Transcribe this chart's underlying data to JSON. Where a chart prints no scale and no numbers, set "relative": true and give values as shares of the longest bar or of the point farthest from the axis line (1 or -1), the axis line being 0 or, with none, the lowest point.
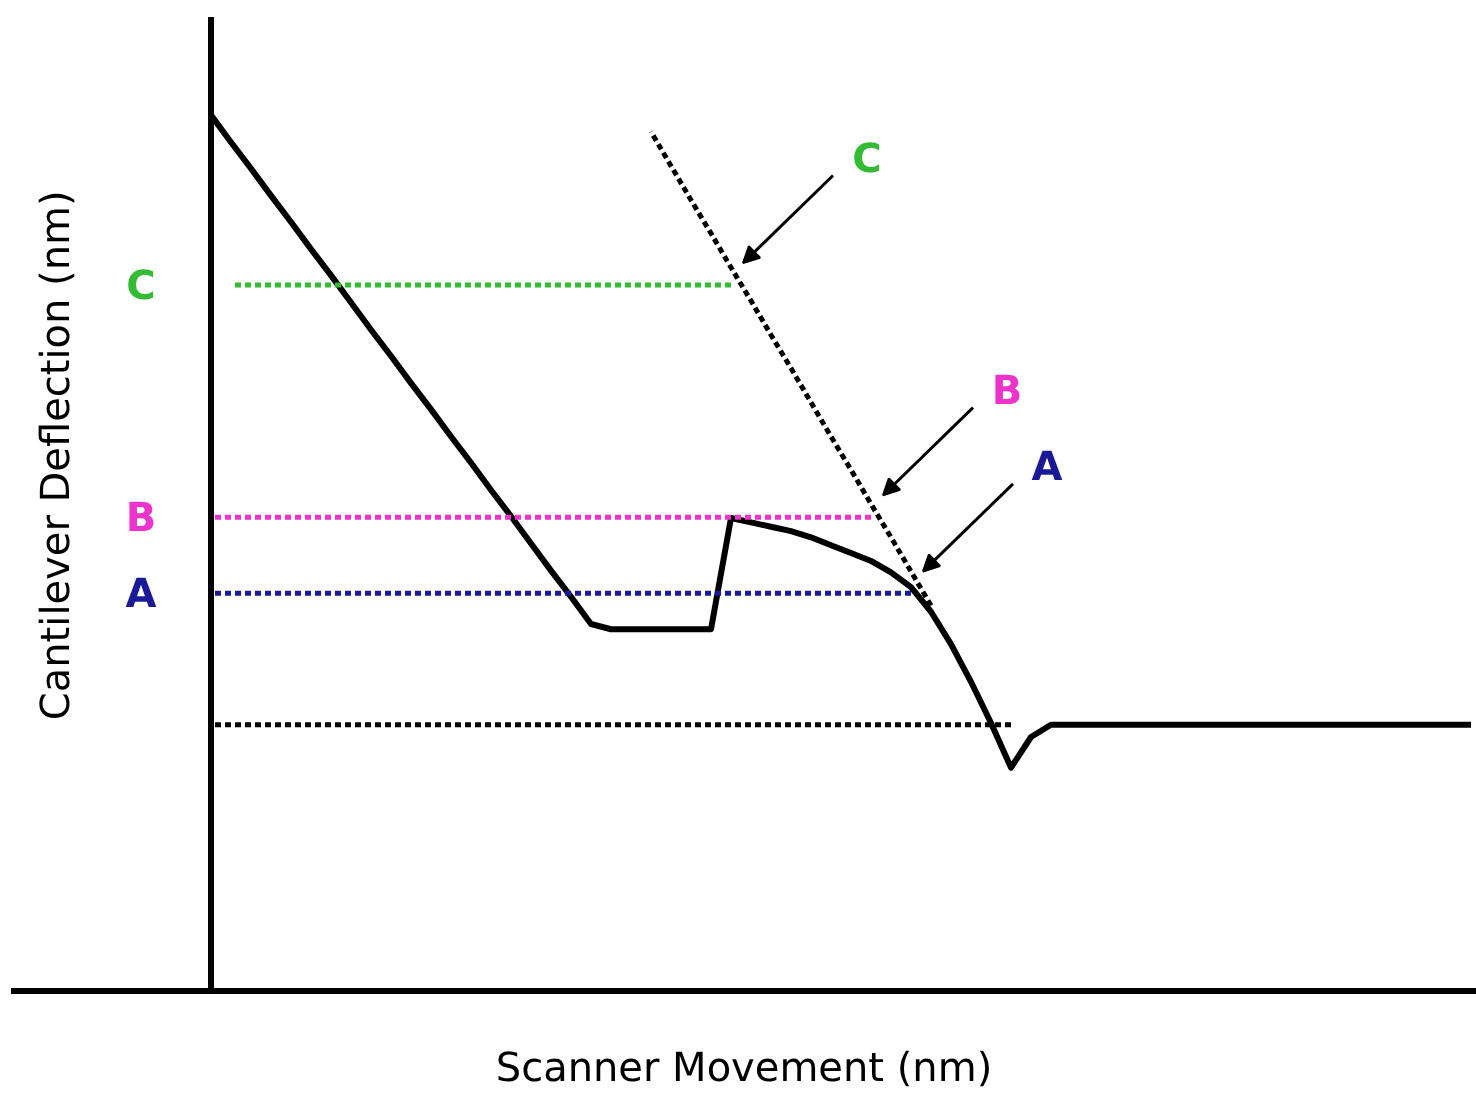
{
  "chart_data": {
    "type": "line",
    "relative": true,
    "xlabel": "Scanner Movement (nm)",
    "ylabel": "Cantilever Deflection (nm)",
    "tick_labels": false,
    "grid": false,
    "legend": false,
    "categories": [
      null,
      null,
      null,
      null,
      null,
      null,
      null,
      null,
      null,
      null,
      null,
      null,
      null,
      null,
      null,
      null,
      null,
      null,
      null,
      null,
      null,
      null,
      null,
      null,
      null,
      null,
      null,
      null,
      null,
      null,
      null,
      null,
      null,
      null,
      null,
      null,
      null,
      null,
      null,
      null,
      null,
      null,
      null,
      null,
      null,
      null,
      null,
      null,
      null,
      null,
      null,
      null,
      null,
      null,
      null,
      null,
      null,
      null,
      null,
      null,
      null,
      null,
      null,
      null
    ],
    "series": [
      {
        "color": "#000000",
        "line_style": "solid",
        "values": [
          1.0,
          0.969,
          0.939,
          0.908,
          0.878,
          0.847,
          0.817,
          0.786,
          0.755,
          0.725,
          0.694,
          0.664,
          0.633,
          0.603,
          0.572,
          0.542,
          0.511,
          0.48,
          0.45,
          0.419,
          0.413,
          0.413,
          0.413,
          0.413,
          0.413,
          0.413,
          0.54,
          0.535,
          0.53,
          0.525,
          0.518,
          0.509,
          0.5,
          0.491,
          0.478,
          0.461,
          0.433,
          0.396,
          0.353,
          0.306,
          0.255,
          0.29,
          0.304,
          0.304,
          0.304,
          0.304,
          0.304,
          0.304,
          0.304,
          0.304,
          0.304,
          0.304,
          0.304,
          0.304,
          0.304,
          0.304,
          0.304,
          0.304,
          0.304,
          0.304,
          0.304,
          0.304,
          0.304,
          0.304
        ]
      },
      {
        "color": "#000000",
        "line_style": "dotted",
        "values": [
          null,
          null,
          null,
          null,
          null,
          null,
          null,
          null,
          null,
          null,
          null,
          null,
          null,
          null,
          null,
          null,
          null,
          null,
          null,
          null,
          null,
          null,
          0.981,
          0.942,
          0.903,
          0.865,
          0.826,
          0.788,
          0.749,
          0.711,
          0.672,
          0.633,
          0.595,
          0.556,
          0.518,
          0.479,
          0.44,
          null,
          null,
          null,
          null,
          null,
          null,
          null,
          null,
          null,
          null,
          null,
          null,
          null,
          null,
          null,
          null,
          null,
          null,
          null,
          null,
          null,
          null,
          null,
          null,
          null,
          null,
          null
        ]
      },
      {
        "name": "C",
        "color": "#33bb33",
        "line_style": "dotted",
        "values": [
          null,
          0.806,
          0.806,
          0.806,
          0.806,
          0.806,
          0.806,
          0.806,
          0.806,
          0.806,
          0.806,
          0.806,
          0.806,
          0.806,
          0.806,
          0.806,
          0.806,
          0.806,
          0.806,
          0.806,
          0.806,
          0.806,
          0.806,
          0.806,
          0.806,
          0.806,
          0.806,
          null,
          null,
          null,
          null,
          null,
          null,
          null,
          null,
          null,
          null,
          null,
          null,
          null,
          null,
          null,
          null,
          null,
          null,
          null,
          null,
          null,
          null,
          null,
          null,
          null,
          null,
          null,
          null,
          null,
          null,
          null,
          null,
          null,
          null,
          null,
          null,
          null
        ]
      },
      {
        "name": "B",
        "color": "#ee33cc",
        "line_style": "dotted",
        "values": [
          0.541,
          0.541,
          0.541,
          0.541,
          0.541,
          0.541,
          0.541,
          0.541,
          0.541,
          0.541,
          0.541,
          0.541,
          0.541,
          0.541,
          0.541,
          0.541,
          0.541,
          0.541,
          0.541,
          0.541,
          0.541,
          0.541,
          0.541,
          0.541,
          0.541,
          0.541,
          0.541,
          0.541,
          0.541,
          0.541,
          0.541,
          0.541,
          0.541,
          0.541,
          null,
          null,
          null,
          null,
          null,
          null,
          null,
          null,
          null,
          null,
          null,
          null,
          null,
          null,
          null,
          null,
          null,
          null,
          null,
          null,
          null,
          null,
          null,
          null,
          null,
          null,
          null,
          null,
          null,
          null
        ]
      },
      {
        "name": "A",
        "color": "#1a1a99",
        "line_style": "dotted",
        "values": [
          0.454,
          0.454,
          0.454,
          0.454,
          0.454,
          0.454,
          0.454,
          0.454,
          0.454,
          0.454,
          0.454,
          0.454,
          0.454,
          0.454,
          0.454,
          0.454,
          0.454,
          0.454,
          0.454,
          0.454,
          0.454,
          0.454,
          0.454,
          0.454,
          0.454,
          0.454,
          0.454,
          0.454,
          0.454,
          0.454,
          0.454,
          0.454,
          0.454,
          0.454,
          0.454,
          0.454,
          null,
          null,
          null,
          null,
          null,
          null,
          null,
          null,
          null,
          null,
          null,
          null,
          null,
          null,
          null,
          null,
          null,
          null,
          null,
          null,
          null,
          null,
          null,
          null,
          null,
          null,
          null,
          null
        ]
      },
      {
        "color": "#000000",
        "line_style": "dotted",
        "values": [
          0.304,
          0.304,
          0.304,
          0.304,
          0.304,
          0.304,
          0.304,
          0.304,
          0.304,
          0.304,
          0.304,
          0.304,
          0.304,
          0.304,
          0.304,
          0.304,
          0.304,
          0.304,
          0.304,
          0.304,
          0.304,
          0.304,
          0.304,
          0.304,
          0.304,
          0.304,
          0.304,
          0.304,
          0.304,
          0.304,
          0.304,
          0.304,
          0.304,
          0.304,
          0.304,
          0.304,
          0.304,
          0.304,
          0.304,
          0.304,
          0.304,
          null,
          null,
          null,
          null,
          null,
          null,
          null,
          null,
          null,
          null,
          null,
          null,
          null,
          null,
          null,
          null,
          null,
          null,
          null,
          null,
          null,
          null,
          null
        ]
      }
    ],
    "annotations": [
      "C",
      "B",
      "A"
    ]
  }
}
